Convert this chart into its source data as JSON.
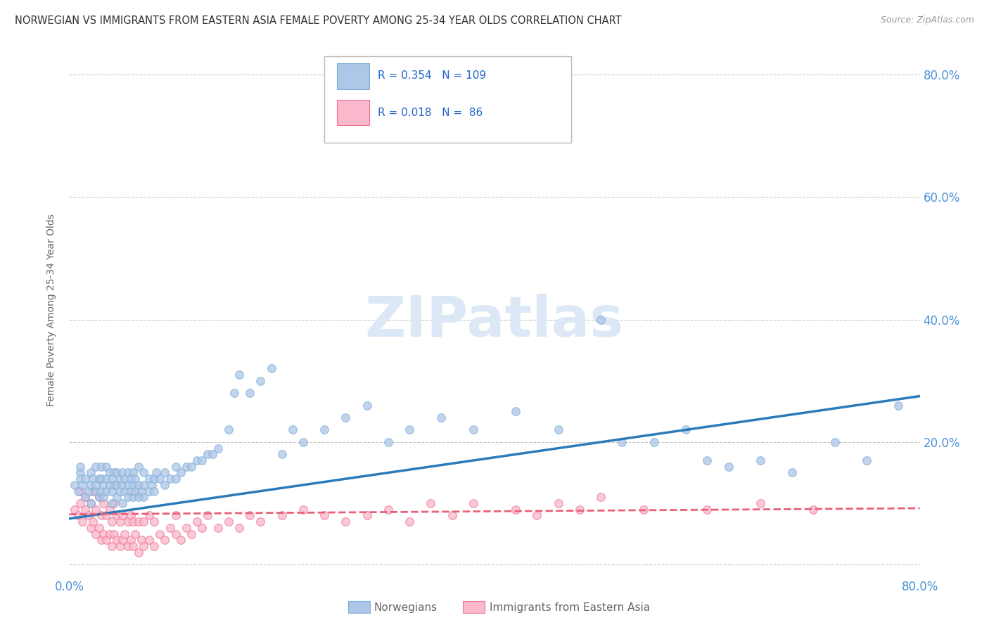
{
  "title": "NORWEGIAN VS IMMIGRANTS FROM EASTERN ASIA FEMALE POVERTY AMONG 25-34 YEAR OLDS CORRELATION CHART",
  "source": "Source: ZipAtlas.com",
  "ylabel": "Female Poverty Among 25-34 Year Olds",
  "xlim": [
    0.0,
    0.8
  ],
  "ylim": [
    -0.02,
    0.85
  ],
  "norwegian_color": "#aec6e8",
  "immigrant_color": "#f9b8cb",
  "norwegian_edge": "#7aadd4",
  "immigrant_edge": "#f07090",
  "trend_norwegian_color": "#2b7bba",
  "trend_immigrant_color": "#e8607a",
  "R_norwegian": 0.354,
  "N_norwegian": 109,
  "R_immigrant": 0.018,
  "N_immigrant": 86,
  "background_color": "#ffffff",
  "grid_color": "#c8c8c8",
  "title_color": "#333333",
  "axis_label_color": "#666666",
  "tick_color": "#4a90d9",
  "watermark_color": "#dce8f5",
  "legend_label_norwegian": "Norwegians",
  "legend_label_immigrant": "Immigrants from Eastern Asia",
  "nor_trend_x0": 0.0,
  "nor_trend_y0": 0.075,
  "nor_trend_x1": 0.8,
  "nor_trend_y1": 0.275,
  "imm_trend_x0": 0.0,
  "imm_trend_y0": 0.082,
  "imm_trend_x1": 0.8,
  "imm_trend_y1": 0.092,
  "norwegian_x": [
    0.005,
    0.008,
    0.01,
    0.01,
    0.01,
    0.012,
    0.015,
    0.015,
    0.018,
    0.02,
    0.02,
    0.02,
    0.022,
    0.025,
    0.025,
    0.025,
    0.028,
    0.028,
    0.03,
    0.03,
    0.03,
    0.032,
    0.032,
    0.035,
    0.035,
    0.035,
    0.038,
    0.038,
    0.04,
    0.04,
    0.04,
    0.042,
    0.042,
    0.045,
    0.045,
    0.045,
    0.048,
    0.048,
    0.05,
    0.05,
    0.05,
    0.052,
    0.052,
    0.055,
    0.055,
    0.055,
    0.058,
    0.058,
    0.06,
    0.06,
    0.06,
    0.062,
    0.062,
    0.065,
    0.065,
    0.065,
    0.068,
    0.07,
    0.07,
    0.07,
    0.075,
    0.075,
    0.078,
    0.08,
    0.08,
    0.082,
    0.085,
    0.09,
    0.09,
    0.095,
    0.1,
    0.1,
    0.105,
    0.11,
    0.115,
    0.12,
    0.125,
    0.13,
    0.135,
    0.14,
    0.15,
    0.155,
    0.16,
    0.17,
    0.18,
    0.19,
    0.2,
    0.21,
    0.22,
    0.24,
    0.26,
    0.28,
    0.3,
    0.32,
    0.35,
    0.38,
    0.42,
    0.46,
    0.52,
    0.58,
    0.62,
    0.65,
    0.68,
    0.72,
    0.5,
    0.55,
    0.6,
    0.75,
    0.78
  ],
  "norwegian_y": [
    0.13,
    0.12,
    0.15,
    0.14,
    0.16,
    0.13,
    0.11,
    0.14,
    0.12,
    0.13,
    0.15,
    0.1,
    0.14,
    0.12,
    0.13,
    0.16,
    0.11,
    0.14,
    0.12,
    0.14,
    0.16,
    0.13,
    0.11,
    0.12,
    0.14,
    0.16,
    0.13,
    0.15,
    0.1,
    0.12,
    0.14,
    0.13,
    0.15,
    0.11,
    0.13,
    0.15,
    0.12,
    0.14,
    0.1,
    0.13,
    0.15,
    0.12,
    0.14,
    0.11,
    0.13,
    0.15,
    0.12,
    0.14,
    0.11,
    0.13,
    0.15,
    0.12,
    0.14,
    0.11,
    0.13,
    0.16,
    0.12,
    0.11,
    0.13,
    0.15,
    0.12,
    0.14,
    0.13,
    0.12,
    0.14,
    0.15,
    0.14,
    0.13,
    0.15,
    0.14,
    0.14,
    0.16,
    0.15,
    0.16,
    0.16,
    0.17,
    0.17,
    0.18,
    0.18,
    0.19,
    0.22,
    0.28,
    0.31,
    0.28,
    0.3,
    0.32,
    0.18,
    0.22,
    0.2,
    0.22,
    0.24,
    0.26,
    0.2,
    0.22,
    0.24,
    0.22,
    0.25,
    0.22,
    0.2,
    0.22,
    0.16,
    0.17,
    0.15,
    0.2,
    0.4,
    0.2,
    0.17,
    0.17,
    0.26
  ],
  "immigrant_x": [
    0.005,
    0.008,
    0.01,
    0.01,
    0.012,
    0.015,
    0.015,
    0.018,
    0.02,
    0.02,
    0.022,
    0.022,
    0.025,
    0.025,
    0.028,
    0.028,
    0.03,
    0.03,
    0.032,
    0.032,
    0.035,
    0.035,
    0.038,
    0.038,
    0.04,
    0.04,
    0.042,
    0.042,
    0.045,
    0.045,
    0.048,
    0.048,
    0.05,
    0.05,
    0.052,
    0.055,
    0.055,
    0.058,
    0.058,
    0.06,
    0.06,
    0.062,
    0.065,
    0.065,
    0.068,
    0.07,
    0.07,
    0.075,
    0.075,
    0.08,
    0.08,
    0.085,
    0.09,
    0.095,
    0.1,
    0.1,
    0.105,
    0.11,
    0.115,
    0.12,
    0.125,
    0.13,
    0.14,
    0.15,
    0.16,
    0.17,
    0.18,
    0.2,
    0.22,
    0.24,
    0.26,
    0.28,
    0.3,
    0.32,
    0.34,
    0.36,
    0.38,
    0.42,
    0.44,
    0.46,
    0.48,
    0.5,
    0.54,
    0.6,
    0.65,
    0.7
  ],
  "immigrant_y": [
    0.09,
    0.08,
    0.12,
    0.1,
    0.07,
    0.09,
    0.11,
    0.08,
    0.06,
    0.1,
    0.07,
    0.12,
    0.05,
    0.09,
    0.06,
    0.11,
    0.04,
    0.08,
    0.05,
    0.1,
    0.04,
    0.08,
    0.05,
    0.09,
    0.03,
    0.07,
    0.05,
    0.1,
    0.04,
    0.08,
    0.03,
    0.07,
    0.04,
    0.08,
    0.05,
    0.03,
    0.07,
    0.04,
    0.08,
    0.03,
    0.07,
    0.05,
    0.02,
    0.07,
    0.04,
    0.03,
    0.07,
    0.04,
    0.08,
    0.03,
    0.07,
    0.05,
    0.04,
    0.06,
    0.05,
    0.08,
    0.04,
    0.06,
    0.05,
    0.07,
    0.06,
    0.08,
    0.06,
    0.07,
    0.06,
    0.08,
    0.07,
    0.08,
    0.09,
    0.08,
    0.07,
    0.08,
    0.09,
    0.07,
    0.1,
    0.08,
    0.1,
    0.09,
    0.08,
    0.1,
    0.09,
    0.11,
    0.09,
    0.09,
    0.1,
    0.09
  ],
  "marker_size": 70,
  "alpha": 0.75
}
